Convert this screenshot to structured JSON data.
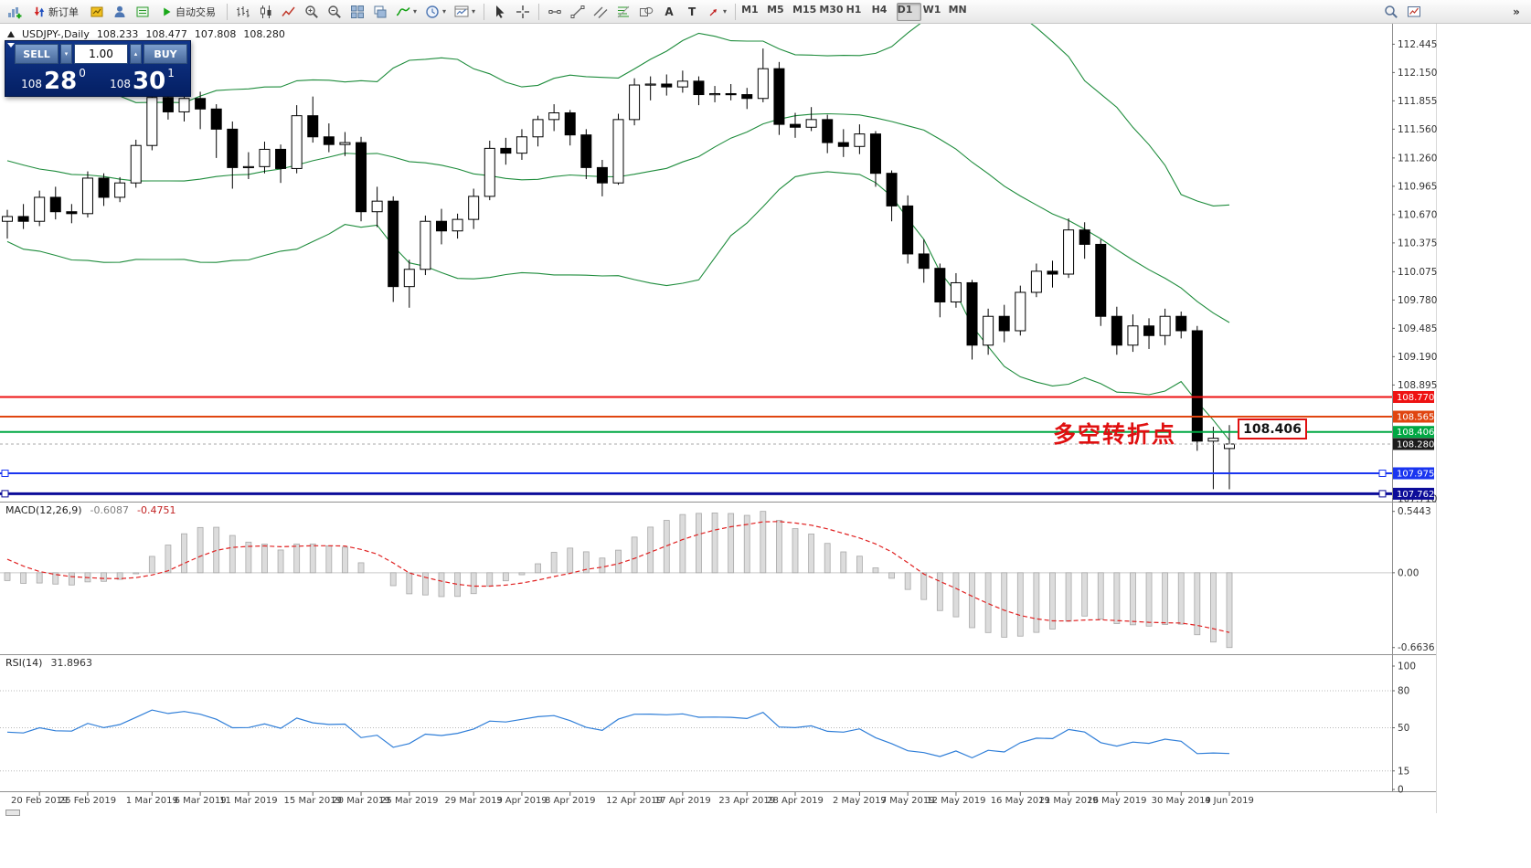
{
  "toolbar": {
    "new_order_label": "新订单",
    "auto_trading_label": "自动交易",
    "timeframes": [
      "M1",
      "M5",
      "M15",
      "M30",
      "H1",
      "H4",
      "D1",
      "W1",
      "MN"
    ],
    "active_timeframe": "D1"
  },
  "glyphs": {
    "text_tool": "A",
    "label_tool": "T",
    "caret_down": "▾",
    "caret_up": "▴",
    "overflow": "»"
  },
  "symbol_header": {
    "title": "USDJPY-,Daily",
    "open": "108.233",
    "high": "108.477",
    "low": "107.808",
    "close": "108.280"
  },
  "trade_panel": {
    "sell_label": "SELL",
    "buy_label": "BUY",
    "volume": "1.00",
    "bid_prefix": "108",
    "bid_big": "28",
    "bid_sup": "0",
    "ask_prefix": "108",
    "ask_big": "30",
    "ask_sup": "1"
  },
  "annotation": {
    "text": "多空转折点",
    "price_label": "108.406",
    "color": "#e01010"
  },
  "indicators": {
    "macd": {
      "label": "MACD(12,26,9)",
      "value": "-0.6087",
      "signal": "-0.4751",
      "scale": [
        "0.5443",
        "0.00",
        "-0.6636"
      ]
    },
    "rsi": {
      "label": "RSI(14)",
      "value": "31.8963",
      "scale": [
        "100",
        "80",
        "50",
        "15",
        "0"
      ],
      "levels": [
        80,
        50,
        15
      ]
    }
  },
  "price_scale": {
    "ticks": [
      "112.445",
      "112.150",
      "111.855",
      "111.560",
      "111.260",
      "110.965",
      "110.670",
      "110.375",
      "110.075",
      "109.780",
      "109.485",
      "109.190",
      "108.895",
      "107.710"
    ],
    "current_price": {
      "value": 108.28,
      "label": "108.280",
      "color": "#1c1c1c"
    }
  },
  "hlines": [
    {
      "value": 108.77,
      "label": "108.770",
      "color": "#ee1212",
      "width": 2,
      "selected": false
    },
    {
      "value": 108.565,
      "label": "108.565",
      "color": "#e04510",
      "width": 2,
      "selected": false
    },
    {
      "value": 108.406,
      "label": "108.406",
      "color": "#00a843",
      "width": 2,
      "selected": false
    },
    {
      "value": 107.975,
      "label": "107.975",
      "color": "#1a35f0",
      "width": 2,
      "selected": true
    },
    {
      "value": 107.762,
      "label": "107.762",
      "color": "#0c0c99",
      "width": 3,
      "selected": true
    }
  ],
  "chart_data": {
    "type": "candlestick",
    "symbol": "USDJPY-",
    "timeframe": "Daily",
    "price_range": [
      107.68,
      112.62
    ],
    "bollinger": {
      "period": 20,
      "deviation": 2
    },
    "date_labels": [
      {
        "label": "20 Feb 2019",
        "i": 2
      },
      {
        "label": "25 Feb 2019",
        "i": 5
      },
      {
        "label": "1 Mar 2019",
        "i": 9
      },
      {
        "label": "6 Mar 2019",
        "i": 12
      },
      {
        "label": "11 Mar 2019",
        "i": 15
      },
      {
        "label": "15 Mar 2019",
        "i": 19
      },
      {
        "label": "20 Mar 2019",
        "i": 22
      },
      {
        "label": "25 Mar 2019",
        "i": 25
      },
      {
        "label": "29 Mar 2019",
        "i": 29
      },
      {
        "label": "3 Apr 2019",
        "i": 32
      },
      {
        "label": "8 Apr 2019",
        "i": 35
      },
      {
        "label": "12 Apr 2019",
        "i": 39
      },
      {
        "label": "17 Apr 2019",
        "i": 42
      },
      {
        "label": "23 Apr 2019",
        "i": 46
      },
      {
        "label": "28 Apr 2019",
        "i": 49
      },
      {
        "label": "2 May 2019",
        "i": 53
      },
      {
        "label": "7 May 2019",
        "i": 56
      },
      {
        "label": "12 May 2019",
        "i": 59
      },
      {
        "label": "16 May 2019",
        "i": 63
      },
      {
        "label": "21 May 2019",
        "i": 66
      },
      {
        "label": "26 May 2019",
        "i": 69
      },
      {
        "label": "30 May 2019",
        "i": 73
      },
      {
        "label": "4 Jun 2019",
        "i": 76
      }
    ],
    "candles": [
      [
        110.6,
        110.72,
        110.42,
        110.65
      ],
      [
        110.65,
        110.78,
        110.52,
        110.6
      ],
      [
        110.6,
        110.92,
        110.55,
        110.85
      ],
      [
        110.85,
        110.96,
        110.62,
        110.7
      ],
      [
        110.7,
        110.78,
        110.58,
        110.68
      ],
      [
        110.68,
        111.12,
        110.64,
        111.05
      ],
      [
        111.05,
        111.1,
        110.76,
        110.85
      ],
      [
        110.85,
        111.06,
        110.8,
        111.0
      ],
      [
        111.0,
        111.45,
        110.95,
        111.39
      ],
      [
        111.39,
        111.96,
        111.34,
        111.89
      ],
      [
        111.89,
        112.0,
        111.66,
        111.74
      ],
      [
        111.74,
        111.96,
        111.64,
        111.88
      ],
      [
        111.88,
        111.95,
        111.56,
        111.77
      ],
      [
        111.77,
        111.82,
        111.26,
        111.56
      ],
      [
        111.56,
        111.64,
        110.94,
        111.16
      ],
      [
        111.16,
        111.32,
        111.04,
        111.17
      ],
      [
        111.17,
        111.43,
        111.1,
        111.35
      ],
      [
        111.35,
        111.4,
        111.0,
        111.15
      ],
      [
        111.15,
        111.81,
        111.1,
        111.7
      ],
      [
        111.7,
        111.9,
        111.42,
        111.48
      ],
      [
        111.48,
        111.62,
        111.32,
        111.4
      ],
      [
        111.4,
        111.53,
        111.28,
        111.42
      ],
      [
        111.42,
        111.48,
        110.6,
        110.7
      ],
      [
        110.7,
        110.96,
        110.54,
        110.81
      ],
      [
        110.81,
        110.86,
        109.76,
        109.92
      ],
      [
        109.92,
        110.2,
        109.7,
        110.1
      ],
      [
        110.1,
        110.66,
        110.04,
        110.6
      ],
      [
        110.6,
        110.73,
        110.36,
        110.5
      ],
      [
        110.5,
        110.68,
        110.42,
        110.62
      ],
      [
        110.62,
        110.94,
        110.52,
        110.86
      ],
      [
        110.86,
        111.44,
        110.82,
        111.36
      ],
      [
        111.36,
        111.47,
        111.19,
        111.31
      ],
      [
        111.31,
        111.56,
        111.24,
        111.48
      ],
      [
        111.48,
        111.7,
        111.38,
        111.66
      ],
      [
        111.66,
        111.82,
        111.54,
        111.73
      ],
      [
        111.73,
        111.76,
        111.39,
        111.5
      ],
      [
        111.5,
        111.56,
        111.04,
        111.16
      ],
      [
        111.16,
        111.24,
        110.86,
        111.0
      ],
      [
        111.0,
        111.72,
        110.98,
        111.66
      ],
      [
        111.66,
        112.09,
        111.6,
        112.02
      ],
      [
        112.02,
        112.11,
        111.86,
        112.03
      ],
      [
        112.03,
        112.13,
        111.91,
        112.0
      ],
      [
        112.0,
        112.17,
        111.94,
        112.06
      ],
      [
        112.06,
        112.11,
        111.81,
        111.92
      ],
      [
        111.92,
        112.01,
        111.84,
        111.93
      ],
      [
        111.93,
        112.03,
        111.86,
        111.92
      ],
      [
        111.92,
        111.99,
        111.77,
        111.88
      ],
      [
        111.88,
        112.4,
        111.84,
        112.19
      ],
      [
        112.19,
        112.26,
        111.5,
        111.61
      ],
      [
        111.61,
        111.73,
        111.47,
        111.58
      ],
      [
        111.58,
        111.79,
        111.54,
        111.66
      ],
      [
        111.66,
        111.71,
        111.31,
        111.42
      ],
      [
        111.42,
        111.56,
        111.27,
        111.38
      ],
      [
        111.38,
        111.61,
        111.3,
        111.51
      ],
      [
        111.51,
        111.54,
        110.96,
        111.1
      ],
      [
        111.1,
        111.13,
        110.6,
        110.76
      ],
      [
        110.76,
        110.87,
        110.16,
        110.26
      ],
      [
        110.26,
        110.41,
        109.96,
        110.11
      ],
      [
        110.11,
        110.16,
        109.6,
        109.76
      ],
      [
        109.76,
        110.06,
        109.7,
        109.96
      ],
      [
        109.96,
        109.99,
        109.16,
        109.31
      ],
      [
        109.31,
        109.69,
        109.21,
        109.61
      ],
      [
        109.61,
        109.73,
        109.34,
        109.46
      ],
      [
        109.46,
        109.93,
        109.41,
        109.86
      ],
      [
        109.86,
        110.16,
        109.81,
        110.08
      ],
      [
        110.08,
        110.19,
        109.91,
        110.05
      ],
      [
        110.05,
        110.63,
        110.01,
        110.51
      ],
      [
        110.51,
        110.59,
        110.21,
        110.36
      ],
      [
        110.36,
        110.41,
        109.51,
        109.61
      ],
      [
        109.61,
        109.71,
        109.21,
        109.31
      ],
      [
        109.31,
        109.63,
        109.24,
        109.51
      ],
      [
        109.51,
        109.59,
        109.27,
        109.41
      ],
      [
        109.41,
        109.69,
        109.31,
        109.61
      ],
      [
        109.61,
        109.66,
        109.38,
        109.46
      ],
      [
        109.46,
        109.51,
        108.21,
        108.31
      ],
      [
        108.31,
        108.46,
        107.81,
        108.34
      ],
      [
        108.233,
        108.477,
        107.808,
        108.28
      ]
    ]
  }
}
